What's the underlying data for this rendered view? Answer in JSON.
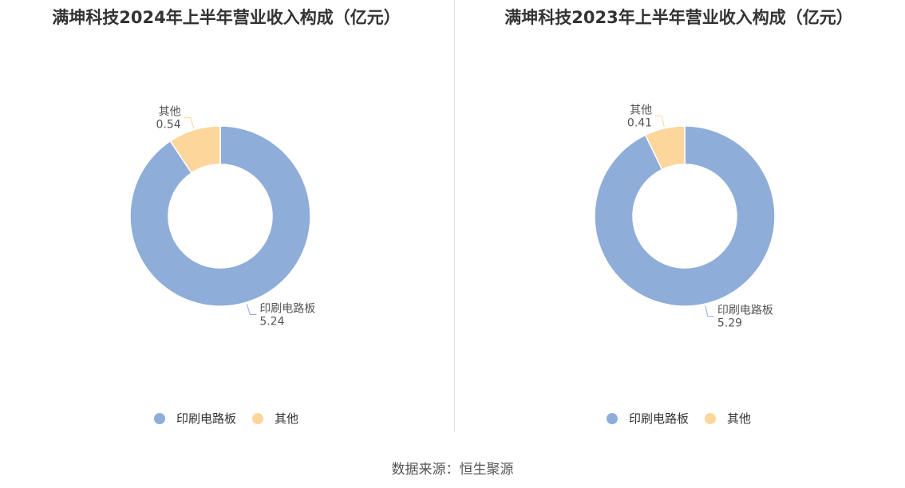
{
  "colors": {
    "series": [
      "#8fadd9",
      "#fdd69b"
    ]
  },
  "chart_data": [
    {
      "type": "pie",
      "title": "满坤科技2024年上半年营业收入构成（亿元）",
      "categories": [
        "印刷电路板",
        "其他"
      ],
      "values": [
        5.24,
        0.54
      ],
      "legend": "bottom"
    },
    {
      "type": "pie",
      "title": "满坤科技2023年上半年营业收入构成（亿元）",
      "categories": [
        "印刷电路板",
        "其他"
      ],
      "values": [
        5.29,
        0.41
      ],
      "legend": "bottom"
    }
  ],
  "source": "数据来源：恒生聚源"
}
